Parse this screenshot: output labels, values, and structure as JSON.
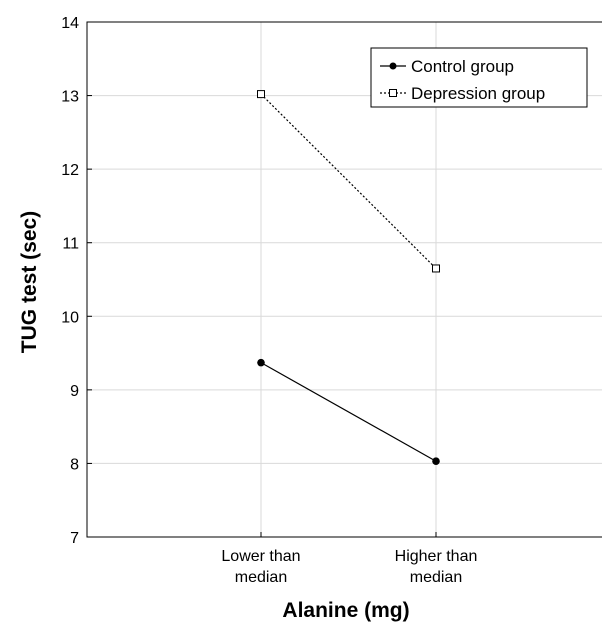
{
  "chart_data": {
    "type": "line",
    "xlabel": "Alanine (mg)",
    "ylabel": "TUG test (sec)",
    "categories": [
      [
        "Lower than",
        "median"
      ],
      [
        "Higher than",
        "median"
      ]
    ],
    "ylim": [
      7,
      14
    ],
    "yticks": [
      7,
      8,
      9,
      10,
      11,
      12,
      13,
      14
    ],
    "grid": true,
    "legend_position": "top-right",
    "series": [
      {
        "name": "Control group",
        "values": [
          9.37,
          8.03
        ],
        "line_style": "solid",
        "marker": "filled-circle",
        "color": "#000000"
      },
      {
        "name": "Depression group",
        "values": [
          13.02,
          10.65
        ],
        "line_style": "dotted",
        "marker": "open-square",
        "color": "#000000"
      }
    ]
  }
}
